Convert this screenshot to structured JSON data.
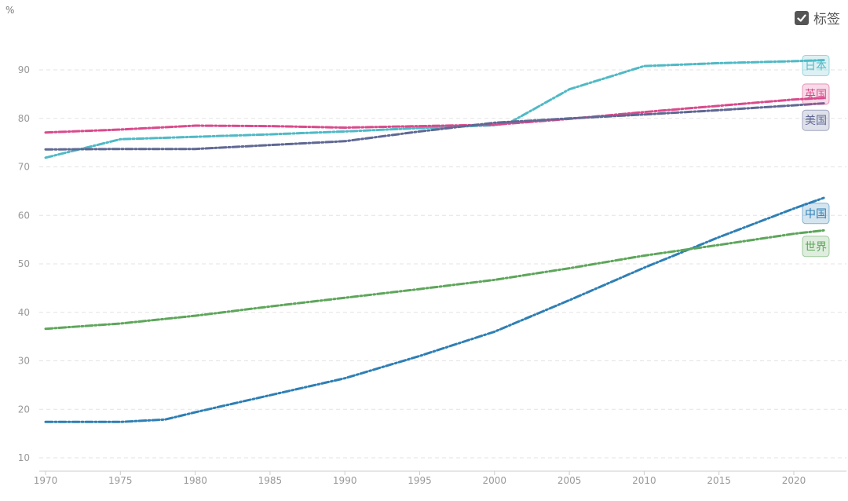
{
  "unit": "%",
  "legend_toggle": {
    "label": "标签",
    "checked": true,
    "icon": "check-icon"
  },
  "chart_data": {
    "type": "line",
    "title": "",
    "xlabel": "",
    "ylabel": "%",
    "xlim": [
      1970,
      2022
    ],
    "ylim": [
      10,
      95
    ],
    "x_ticks": [
      1970,
      1975,
      1980,
      1985,
      1990,
      1995,
      2000,
      2005,
      2010,
      2015,
      2020
    ],
    "y_ticks": [
      10,
      20,
      30,
      40,
      50,
      60,
      70,
      80,
      90
    ],
    "grid": true,
    "series": [
      {
        "name": "日本",
        "color": "#4fb9c6",
        "x": [
          1970,
          1975,
          1980,
          1985,
          1990,
          1995,
          2000,
          2001,
          2005,
          2010,
          2015,
          2020,
          2022
        ],
        "y": [
          71.9,
          75.7,
          76.2,
          76.7,
          77.3,
          78.0,
          78.6,
          79.1,
          86.0,
          90.8,
          91.4,
          91.8,
          92.0
        ]
      },
      {
        "name": "英国",
        "color": "#d94a8c",
        "x": [
          1970,
          1975,
          1980,
          1985,
          1990,
          1995,
          2000,
          2005,
          2010,
          2015,
          2020,
          2022
        ],
        "y": [
          77.1,
          77.7,
          78.5,
          78.4,
          78.1,
          78.4,
          78.7,
          79.9,
          81.3,
          82.6,
          83.9,
          84.2
        ]
      },
      {
        "name": "美国",
        "color": "#5f6894",
        "x": [
          1970,
          1975,
          1980,
          1985,
          1990,
          1995,
          2000,
          2005,
          2010,
          2015,
          2020,
          2022
        ],
        "y": [
          73.6,
          73.7,
          73.7,
          74.5,
          75.3,
          77.3,
          79.1,
          80.0,
          80.8,
          81.7,
          82.7,
          83.1
        ]
      },
      {
        "name": "中国",
        "color": "#2e7fb5",
        "x": [
          1970,
          1975,
          1978,
          1980,
          1985,
          1990,
          1995,
          2000,
          2005,
          2010,
          2015,
          2020,
          2022
        ],
        "y": [
          17.4,
          17.4,
          17.9,
          19.4,
          22.9,
          26.4,
          31.0,
          36.0,
          42.5,
          49.2,
          55.5,
          61.4,
          63.6
        ]
      },
      {
        "name": "世界",
        "color": "#5da65a",
        "x": [
          1970,
          1975,
          1980,
          1985,
          1990,
          1995,
          2000,
          2005,
          2010,
          2015,
          2020,
          2022
        ],
        "y": [
          36.6,
          37.7,
          39.3,
          41.2,
          43.0,
          44.8,
          46.7,
          49.1,
          51.7,
          53.9,
          56.2,
          56.9
        ]
      }
    ],
    "end_labels": [
      {
        "series": "日本",
        "y": 90.9,
        "text": "日本"
      },
      {
        "series": "英国",
        "y": 85.0,
        "text": "英国"
      },
      {
        "series": "美国",
        "y": 79.6,
        "text": "美国"
      },
      {
        "series": "中国",
        "y": 60.4,
        "text": "中国"
      },
      {
        "series": "世界",
        "y": 53.6,
        "text": "世界"
      }
    ]
  }
}
